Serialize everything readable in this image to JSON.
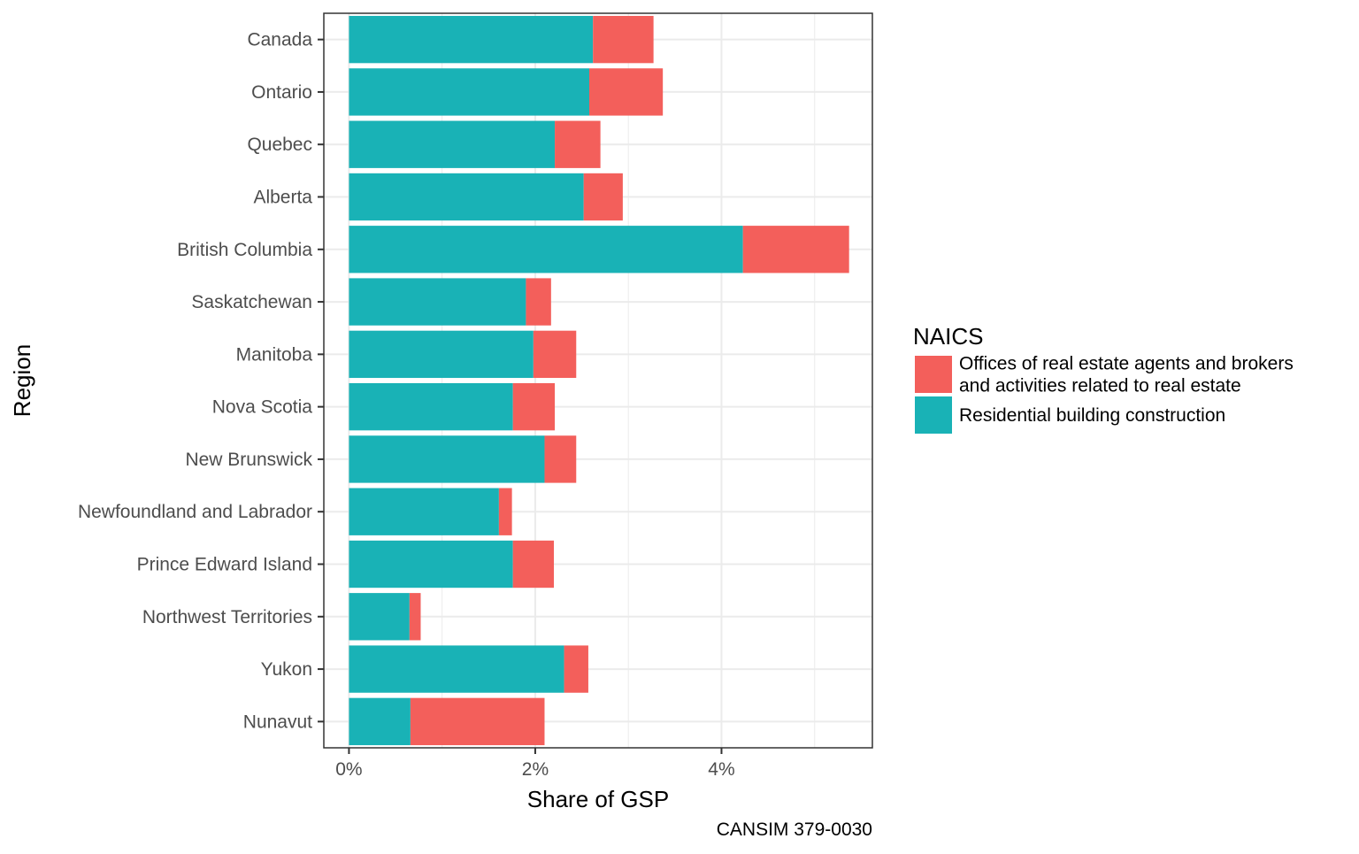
{
  "chart_data": {
    "type": "bar",
    "orientation": "horizontal",
    "stacked": true,
    "title": "",
    "xlabel": "Share of GSP",
    "ylabel": "Region",
    "caption": "CANSIM 379-0030",
    "xlim": [
      -0.27,
      5.62
    ],
    "x_ticks": [
      0,
      2,
      4
    ],
    "x_tick_labels": [
      "0%",
      "2%",
      "4%"
    ],
    "x_minor_gridlines": [
      1,
      3,
      5
    ],
    "grid": true,
    "categories": [
      "Canada",
      "Ontario",
      "Quebec",
      "Alberta",
      "British Columbia",
      "Saskatchewan",
      "Manitoba",
      "Nova Scotia",
      "New Brunswick",
      "Newfoundland and Labrador",
      "Prince Edward Island",
      "Northwest Territories",
      "Yukon",
      "Nunavut"
    ],
    "series": [
      {
        "name": "Residential building construction",
        "color": "#19b2b6",
        "values": [
          2.62,
          2.58,
          2.21,
          2.52,
          4.23,
          1.9,
          1.98,
          1.76,
          2.1,
          1.61,
          1.76,
          0.65,
          2.31,
          0.66
        ]
      },
      {
        "name": "Offices of real estate agents and brokers and activities related to real estate",
        "color": "#f35f5b",
        "values": [
          0.65,
          0.79,
          0.49,
          0.42,
          1.14,
          0.27,
          0.46,
          0.45,
          0.34,
          0.14,
          0.44,
          0.12,
          0.26,
          1.44
        ]
      }
    ],
    "legend": {
      "title": "NAICS",
      "position": "right",
      "entries": [
        {
          "label_lines": [
            "Offices of real estate agents and brokers",
            "and activities related to real estate"
          ],
          "color": "#f35f5b"
        },
        {
          "label_lines": [
            "Residential building construction"
          ],
          "color": "#19b2b6"
        }
      ]
    }
  }
}
